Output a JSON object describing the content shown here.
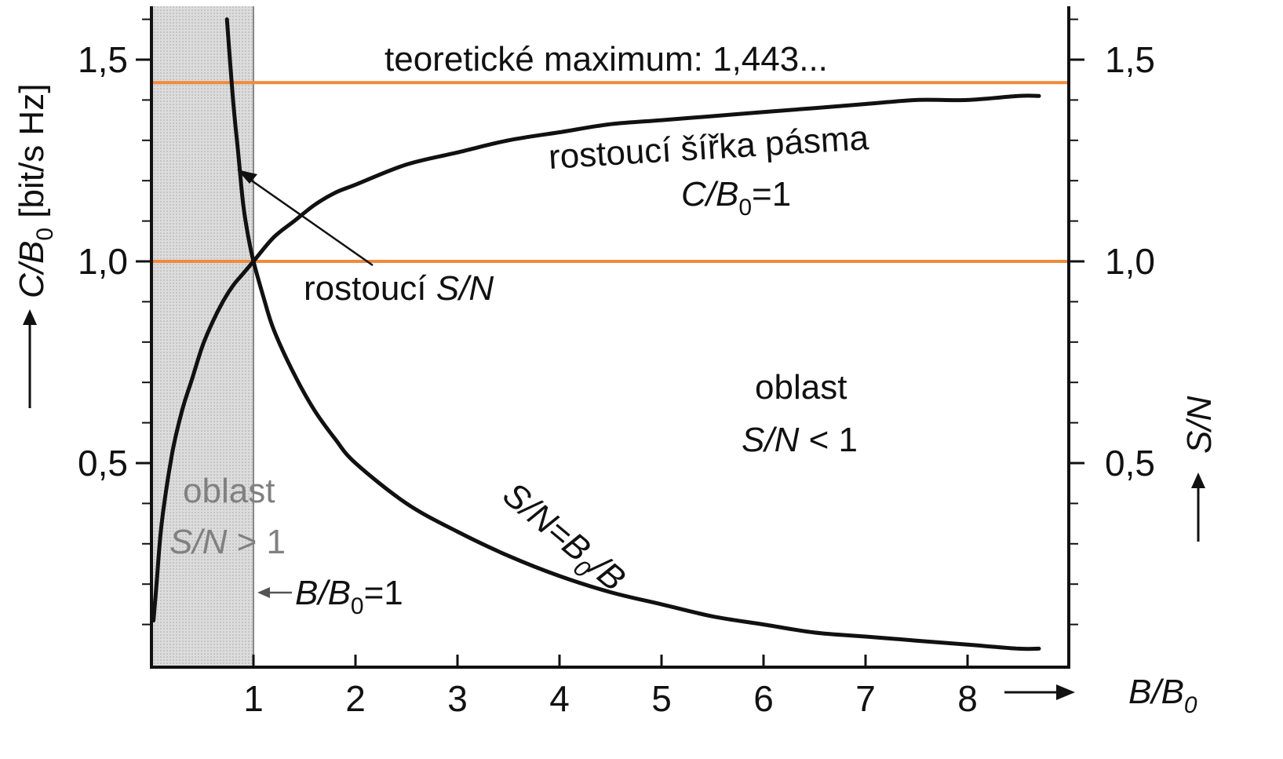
{
  "chart_data": {
    "type": "line",
    "x_unit_label": {
      "var": "B/B",
      "sub": "0"
    },
    "y_left_label": {
      "pre": "C/B",
      "sub": "0",
      "post": " [bit/s Hz]"
    },
    "y_right_label": "S/N",
    "xlim": [
      0,
      8.9
    ],
    "ylim": [
      0,
      1.62
    ],
    "x_ticks": [
      {
        "value": 1,
        "label": "1"
      },
      {
        "value": 2,
        "label": "2"
      },
      {
        "value": 3,
        "label": "3"
      },
      {
        "value": 4,
        "label": "4"
      },
      {
        "value": 5,
        "label": "5"
      },
      {
        "value": 6,
        "label": "6"
      },
      {
        "value": 7,
        "label": "7"
      },
      {
        "value": 8,
        "label": "8"
      }
    ],
    "y_ticks": [
      {
        "value": 0.5,
        "label": "0,5"
      },
      {
        "value": 1.0,
        "label": "1,0"
      },
      {
        "value": 1.5,
        "label": "1,5"
      }
    ],
    "y_minor_step": 0.1,
    "series": [
      {
        "id": "capacity",
        "x": [
          0.02,
          0.05,
          0.1,
          0.2,
          0.3,
          0.4,
          0.5,
          0.6,
          0.7,
          0.8,
          0.9,
          1.0,
          1.2,
          1.4,
          1.6,
          1.8,
          2.0,
          2.5,
          3.0,
          3.5,
          4.0,
          4.5,
          5.0,
          5.5,
          6.0,
          6.5,
          7.0,
          7.5,
          8.0,
          8.5,
          8.7
        ],
        "y": [
          0.11,
          0.2,
          0.35,
          0.52,
          0.63,
          0.71,
          0.79,
          0.85,
          0.9,
          0.94,
          0.97,
          1.0,
          1.06,
          1.1,
          1.14,
          1.17,
          1.19,
          1.24,
          1.27,
          1.3,
          1.32,
          1.34,
          1.35,
          1.36,
          1.37,
          1.38,
          1.39,
          1.4,
          1.4,
          1.41,
          1.41
        ]
      },
      {
        "id": "snr",
        "x": [
          0.74,
          0.8,
          0.85,
          0.9,
          0.95,
          1.0,
          1.1,
          1.2,
          1.4,
          1.6,
          1.8,
          2.0,
          2.5,
          3.0,
          3.5,
          4.0,
          4.5,
          5.0,
          5.5,
          6.0,
          6.5,
          7.0,
          7.5,
          8.0,
          8.5,
          8.7
        ],
        "y": [
          1.6,
          1.4,
          1.27,
          1.14,
          1.06,
          1.0,
          0.91,
          0.83,
          0.72,
          0.63,
          0.56,
          0.5,
          0.4,
          0.33,
          0.27,
          0.22,
          0.18,
          0.15,
          0.12,
          0.1,
          0.08,
          0.07,
          0.06,
          0.05,
          0.04,
          0.04
        ]
      }
    ],
    "reference_lines": [
      {
        "y": 1.443,
        "color": "#f08a3c",
        "label": "teoretické maximum: 1,443..."
      },
      {
        "y": 1.0,
        "color": "#f08a3c"
      }
    ],
    "shaded_region": {
      "x": [
        0,
        1
      ],
      "color": "#d6d6d6"
    },
    "annotations": {
      "bandwidth": {
        "line1": "rostoucí šířka pásma",
        "line2_var": "C/B",
        "line2_sub": "0",
        "line2_rest": "=1"
      },
      "snr_growth": {
        "text": "rostoucí ",
        "var": "S/N"
      },
      "region_low": {
        "line1": "oblast",
        "line2_var": "S/N",
        "line2_rest": " < 1"
      },
      "region_high": {
        "line1": "oblast",
        "line2_var": "S/N",
        "line2_rest": " > 1"
      },
      "curve_label": {
        "pre": "S/N=B",
        "sub": "0",
        "post": "/B"
      },
      "marker": {
        "var": "B/B",
        "sub": "0",
        "rest": "=1"
      }
    }
  }
}
